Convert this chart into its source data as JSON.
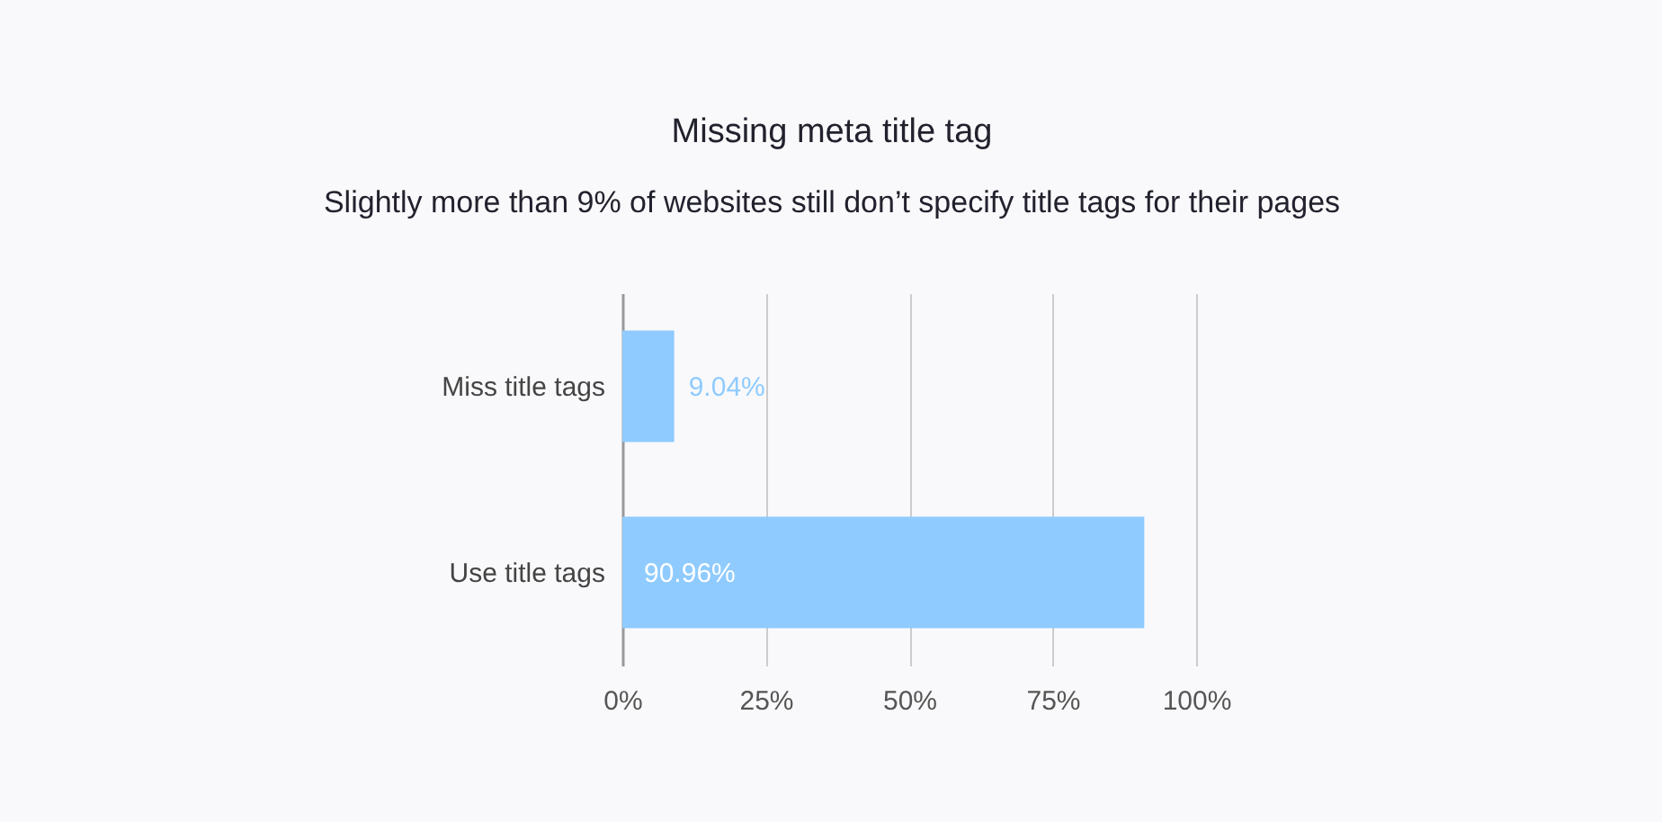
{
  "chart_data": {
    "type": "bar",
    "title": "Missing meta title tag",
    "subtitle": "Slightly more than 9% of websites still don’t specify title tags for their pages",
    "orientation": "horizontal",
    "categories": [
      "Miss title tags",
      "Use title tags"
    ],
    "series": [
      {
        "color": "#8fcbff",
        "values": [
          9.04,
          90.96
        ],
        "value_labels": [
          "9.04%",
          "90.96%"
        ]
      }
    ],
    "xlim": [
      0,
      100
    ],
    "xticks": [
      {
        "value": 0,
        "label": "0%"
      },
      {
        "value": 25,
        "label": "25%"
      },
      {
        "value": 50,
        "label": "50%"
      },
      {
        "value": 75,
        "label": "75%"
      },
      {
        "value": 100,
        "label": "100%"
      }
    ],
    "grid": "x"
  }
}
